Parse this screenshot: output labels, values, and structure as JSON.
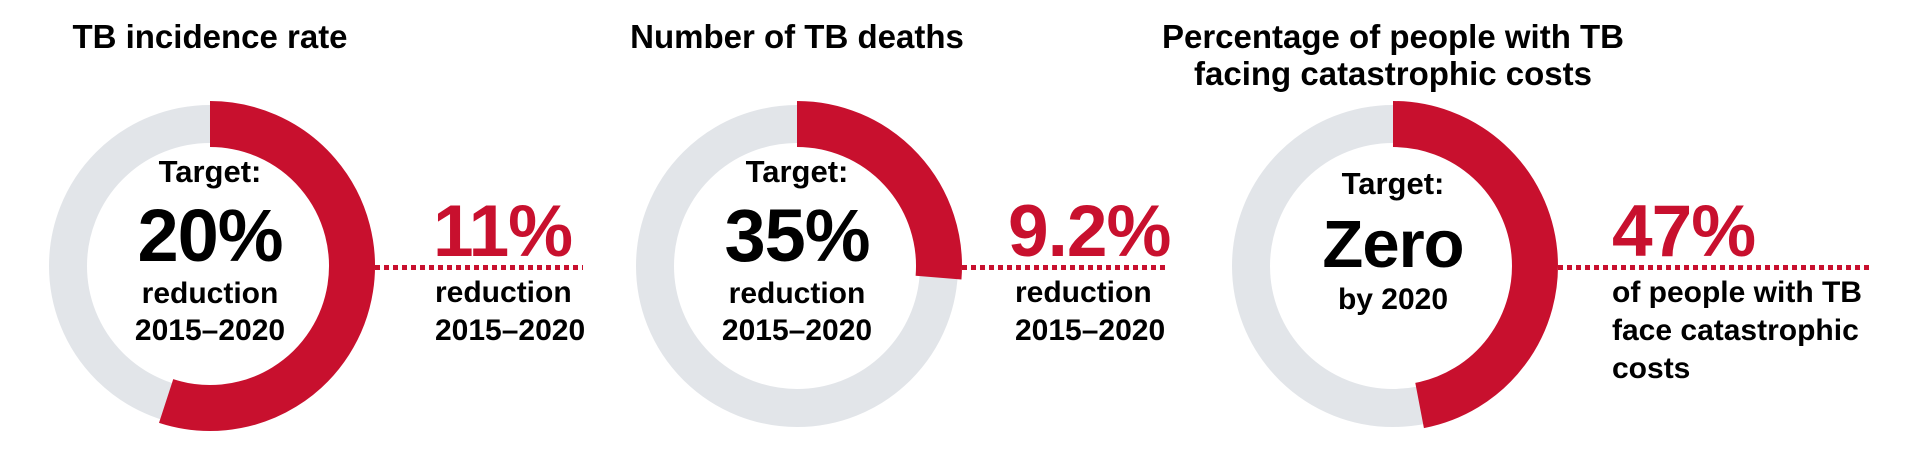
{
  "colors": {
    "accent_red": "#c8102e",
    "track_gray": "#e2e5e9",
    "ink": "#000000"
  },
  "chart_data": [
    {
      "type": "donut",
      "title": "TB incidence rate",
      "title_line2": "",
      "center": {
        "label": "Target:",
        "value": "20%",
        "sub1": "reduction",
        "sub2": "2015–2020"
      },
      "result": {
        "value": "11%",
        "line1": "reduction",
        "line2": "2015–2020",
        "line3": ""
      },
      "target_pct": 20,
      "achieved_pct": 11,
      "fill_fraction": 0.55
    },
    {
      "type": "donut",
      "title": "Number of TB deaths",
      "title_line2": "",
      "center": {
        "label": "Target:",
        "value": "35%",
        "sub1": "reduction",
        "sub2": "2015–2020"
      },
      "result": {
        "value": "9.2%",
        "line1": "reduction",
        "line2": "2015–2020",
        "line3": ""
      },
      "target_pct": 35,
      "achieved_pct": 9.2,
      "fill_fraction": 0.263
    },
    {
      "type": "donut",
      "title": "Percentage of people with TB",
      "title_line2": "facing catastrophic costs",
      "center": {
        "label": "Target:",
        "value": "Zero",
        "sub1": "by 2020",
        "sub2": ""
      },
      "result": {
        "value": "47%",
        "line1": "of people with TB",
        "line2": "face catastrophic",
        "line3": "costs"
      },
      "achieved_pct": 47,
      "fill_fraction": 0.47
    }
  ]
}
